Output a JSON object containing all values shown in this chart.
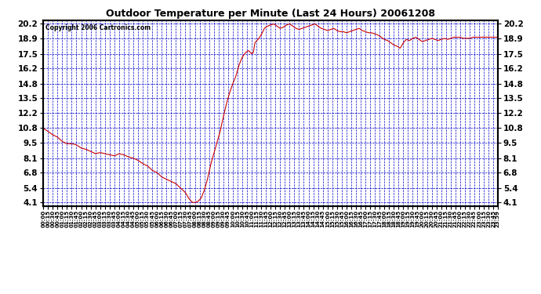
{
  "title": "Outdoor Temperature per Minute (Last 24 Hours) 20061208",
  "copyright_text": "Copyright 2006 Cartronics.com",
  "background_color": "#ffffff",
  "plot_bg_color": "#ffffff",
  "line_color": "#cc0000",
  "grid_color": "#0000cc",
  "border_color": "#000000",
  "title_color": "#000000",
  "yticks": [
    4.1,
    5.4,
    6.8,
    8.1,
    9.5,
    10.8,
    12.2,
    13.5,
    14.8,
    16.2,
    17.5,
    18.9,
    20.2
  ],
  "ymin": 4.1,
  "ymax": 20.2,
  "keypoints": [
    [
      0,
      10.8
    ],
    [
      15,
      10.5
    ],
    [
      30,
      10.2
    ],
    [
      45,
      10.0
    ],
    [
      60,
      9.6
    ],
    [
      75,
      9.4
    ],
    [
      90,
      9.4
    ],
    [
      105,
      9.3
    ],
    [
      120,
      9.0
    ],
    [
      135,
      8.9
    ],
    [
      150,
      8.7
    ],
    [
      165,
      8.5
    ],
    [
      180,
      8.6
    ],
    [
      195,
      8.5
    ],
    [
      210,
      8.4
    ],
    [
      225,
      8.3
    ],
    [
      240,
      8.5
    ],
    [
      255,
      8.4
    ],
    [
      270,
      8.2
    ],
    [
      285,
      8.1
    ],
    [
      300,
      7.9
    ],
    [
      315,
      7.6
    ],
    [
      330,
      7.4
    ],
    [
      345,
      7.0
    ],
    [
      360,
      6.8
    ],
    [
      375,
      6.4
    ],
    [
      390,
      6.2
    ],
    [
      405,
      6.0
    ],
    [
      420,
      5.8
    ],
    [
      435,
      5.4
    ],
    [
      450,
      5.0
    ],
    [
      460,
      4.5
    ],
    [
      470,
      4.15
    ],
    [
      475,
      4.1
    ],
    [
      480,
      4.1
    ],
    [
      490,
      4.2
    ],
    [
      500,
      4.5
    ],
    [
      510,
      5.2
    ],
    [
      520,
      6.2
    ],
    [
      530,
      7.5
    ],
    [
      540,
      8.5
    ],
    [
      550,
      9.5
    ],
    [
      560,
      10.5
    ],
    [
      570,
      11.8
    ],
    [
      580,
      13.0
    ],
    [
      590,
      14.0
    ],
    [
      600,
      14.8
    ],
    [
      610,
      15.5
    ],
    [
      620,
      16.5
    ],
    [
      630,
      17.2
    ],
    [
      640,
      17.6
    ],
    [
      650,
      17.8
    ],
    [
      660,
      17.5
    ],
    [
      665,
      17.6
    ],
    [
      670,
      18.5
    ],
    [
      680,
      18.8
    ],
    [
      690,
      19.2
    ],
    [
      700,
      19.8
    ],
    [
      710,
      20.0
    ],
    [
      720,
      20.1
    ],
    [
      730,
      20.2
    ],
    [
      740,
      20.0
    ],
    [
      750,
      19.8
    ],
    [
      760,
      19.9
    ],
    [
      770,
      20.1
    ],
    [
      780,
      20.2
    ],
    [
      790,
      20.0
    ],
    [
      800,
      19.8
    ],
    [
      810,
      19.7
    ],
    [
      820,
      19.8
    ],
    [
      830,
      19.9
    ],
    [
      840,
      20.0
    ],
    [
      850,
      20.1
    ],
    [
      860,
      20.2
    ],
    [
      870,
      20.0
    ],
    [
      880,
      19.8
    ],
    [
      890,
      19.7
    ],
    [
      900,
      19.6
    ],
    [
      910,
      19.7
    ],
    [
      920,
      19.8
    ],
    [
      930,
      19.6
    ],
    [
      940,
      19.5
    ],
    [
      950,
      19.5
    ],
    [
      960,
      19.4
    ],
    [
      970,
      19.5
    ],
    [
      980,
      19.6
    ],
    [
      990,
      19.7
    ],
    [
      1000,
      19.8
    ],
    [
      1010,
      19.6
    ],
    [
      1020,
      19.5
    ],
    [
      1030,
      19.4
    ],
    [
      1040,
      19.4
    ],
    [
      1050,
      19.3
    ],
    [
      1060,
      19.2
    ],
    [
      1070,
      19.0
    ],
    [
      1080,
      18.8
    ],
    [
      1090,
      18.7
    ],
    [
      1100,
      18.5
    ],
    [
      1110,
      18.3
    ],
    [
      1120,
      18.2
    ],
    [
      1130,
      18.0
    ],
    [
      1140,
      18.5
    ],
    [
      1150,
      18.8
    ],
    [
      1160,
      18.7
    ],
    [
      1170,
      18.9
    ],
    [
      1180,
      19.0
    ],
    [
      1190,
      18.8
    ],
    [
      1200,
      18.6
    ],
    [
      1210,
      18.7
    ],
    [
      1220,
      18.8
    ],
    [
      1230,
      18.9
    ],
    [
      1240,
      18.8
    ],
    [
      1250,
      18.7
    ],
    [
      1260,
      18.8
    ],
    [
      1270,
      18.9
    ],
    [
      1280,
      18.8
    ],
    [
      1290,
      18.9
    ],
    [
      1300,
      19.0
    ],
    [
      1310,
      19.0
    ],
    [
      1320,
      19.0
    ],
    [
      1330,
      18.9
    ],
    [
      1340,
      18.9
    ],
    [
      1350,
      18.9
    ],
    [
      1360,
      19.0
    ],
    [
      1370,
      19.0
    ],
    [
      1380,
      19.0
    ],
    [
      1390,
      19.0
    ],
    [
      1400,
      19.0
    ],
    [
      1410,
      19.0
    ],
    [
      1420,
      19.0
    ],
    [
      1430,
      19.0
    ],
    [
      1439,
      19.0
    ]
  ]
}
